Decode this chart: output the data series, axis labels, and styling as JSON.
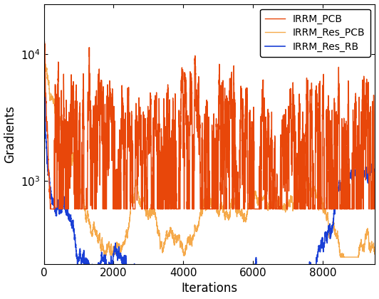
{
  "title": "",
  "xlabel": "Iterations",
  "ylabel": "Gradients",
  "xlim": [
    0,
    9500
  ],
  "ylim_log": [
    220,
    25000
  ],
  "xticks": [
    0,
    2000,
    4000,
    6000,
    8000
  ],
  "legend_labels": [
    "IRRM_PCB",
    "IRRM_Res_PCB",
    "IRRM_Res_RB"
  ],
  "colors": {
    "IRRM_PCB": "#e8470a",
    "IRRM_Res_PCB": "#f5a94a",
    "IRRM_Res_RB": "#1a3fd6"
  },
  "line_widths": {
    "IRRM_PCB": 1.0,
    "IRRM_Res_PCB": 1.0,
    "IRRM_Res_RB": 1.2
  },
  "n_points": 9500,
  "seed": 12345,
  "figsize": [
    5.32,
    4.2
  ],
  "dpi": 100
}
